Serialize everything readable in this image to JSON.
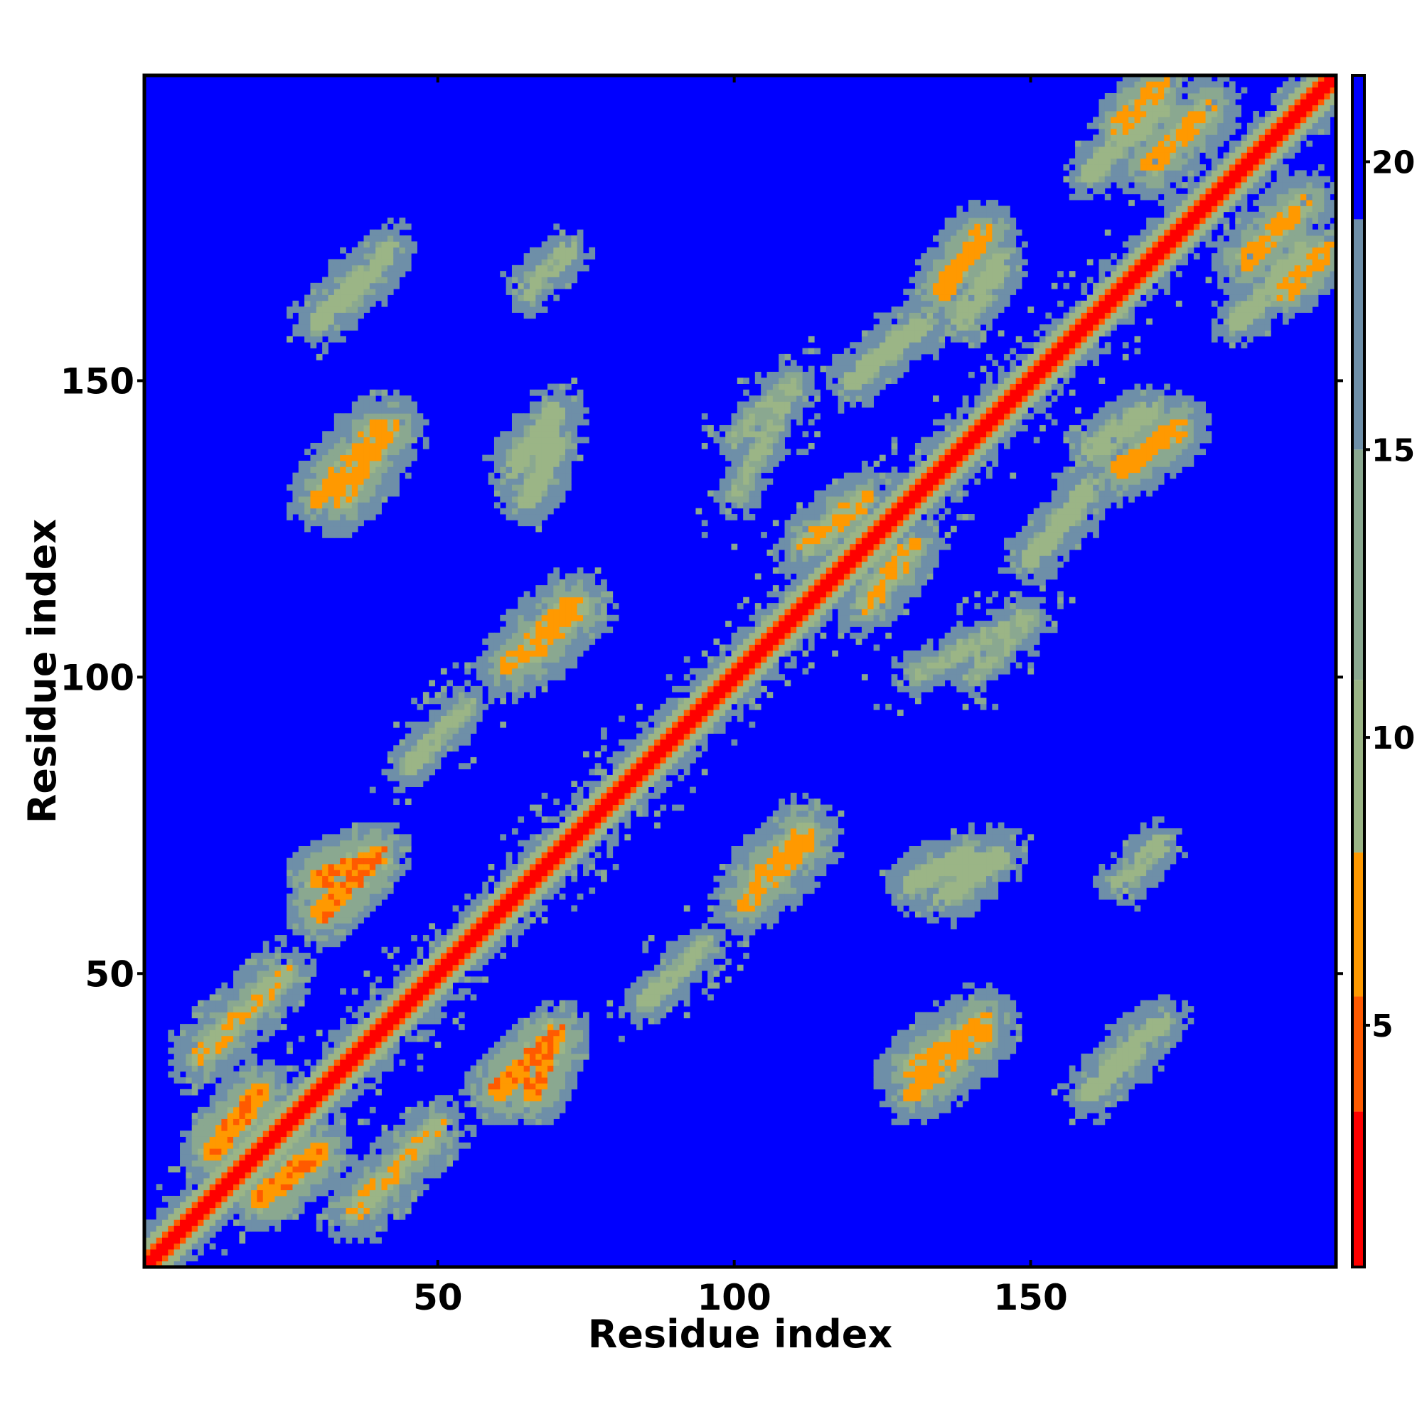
{
  "chart_data": {
    "type": "heatmap",
    "title": "",
    "xlabel": "Residue index",
    "ylabel": "Residue index",
    "xlim": [
      1,
      201
    ],
    "ylim": [
      1,
      201
    ],
    "n_residues": 201,
    "x_ticks": [
      50,
      100,
      150
    ],
    "y_ticks": [
      50,
      100,
      150
    ],
    "colorbar": {
      "ticks": [
        5,
        10,
        15,
        20
      ],
      "range": [
        0.8,
        21.5
      ],
      "colors": [
        {
          "max": 3.5,
          "color": "#ff0000"
        },
        {
          "max": 5.5,
          "color": "#ff5a00"
        },
        {
          "max": 8.0,
          "color": "#ff9900"
        },
        {
          "max": 11.0,
          "color": "#9bb586"
        },
        {
          "max": 15.0,
          "color": "#8aa890"
        },
        {
          "max": 19.0,
          "color": "#6e8fa8"
        },
        {
          "max": 99,
          "color": "#0000ff"
        }
      ],
      "background_color": "#0000ff"
    },
    "diagonal_band_halfwidth": 8,
    "contact_segments": [
      {
        "from": [
          12,
          20
        ],
        "to": [
          20,
          30
        ],
        "width": 6,
        "d": 7
      },
      {
        "from": [
          36,
          10
        ],
        "to": [
          50,
          24
        ],
        "width": 7,
        "d": 9
      },
      {
        "from": [
          30,
          66
        ],
        "to": [
          40,
          70
        ],
        "width": 6,
        "d": 7
      },
      {
        "from": [
          30,
          130
        ],
        "to": [
          40,
          142
        ],
        "width": 7,
        "d": 8
      },
      {
        "from": [
          30,
          160
        ],
        "to": [
          42,
          172
        ],
        "width": 6,
        "d": 10
      },
      {
        "from": [
          60,
          30
        ],
        "to": [
          68,
          38
        ],
        "width": 6,
        "d": 7
      },
      {
        "from": [
          62,
          102
        ],
        "to": [
          72,
          112
        ],
        "width": 7,
        "d": 8
      },
      {
        "from": [
          65,
          130
        ],
        "to": [
          70,
          140
        ],
        "width": 6,
        "d": 10
      },
      {
        "from": [
          65,
          165
        ],
        "to": [
          72,
          172
        ],
        "width": 5,
        "d": 11
      },
      {
        "from": [
          104,
          66
        ],
        "to": [
          112,
          74
        ],
        "width": 7,
        "d": 8
      },
      {
        "from": [
          130,
          34
        ],
        "to": [
          142,
          42
        ],
        "width": 7,
        "d": 8
      },
      {
        "from": [
          135,
          63
        ],
        "to": [
          145,
          70
        ],
        "width": 6,
        "d": 10
      },
      {
        "from": [
          112,
          122
        ],
        "to": [
          122,
          130
        ],
        "width": 7,
        "d": 9
      },
      {
        "from": [
          138,
          160
        ],
        "to": [
          145,
          170
        ],
        "width": 5,
        "d": 10
      },
      {
        "from": [
          165,
          135
        ],
        "to": [
          175,
          142
        ],
        "width": 6,
        "d": 8
      },
      {
        "from": [
          170,
          186
        ],
        "to": [
          180,
          196
        ],
        "width": 6,
        "d": 8
      },
      {
        "from": [
          193,
          165
        ],
        "to": [
          200,
          172
        ],
        "width": 5,
        "d": 8
      },
      {
        "from": [
          140,
          100
        ],
        "to": [
          150,
          110
        ],
        "width": 7,
        "d": 12
      },
      {
        "from": [
          100,
          130
        ],
        "to": [
          110,
          150
        ],
        "width": 8,
        "d": 12
      },
      {
        "from": [
          120,
          150
        ],
        "to": [
          132,
          160
        ],
        "width": 6,
        "d": 11
      },
      {
        "from": [
          150,
          120
        ],
        "to": [
          160,
          132
        ],
        "width": 6,
        "d": 11
      },
      {
        "from": [
          85,
          45
        ],
        "to": [
          95,
          55
        ],
        "width": 8,
        "d": 12
      },
      {
        "from": [
          45,
          85
        ],
        "to": [
          55,
          95
        ],
        "width": 8,
        "d": 12
      },
      {
        "from": [
          160,
          185
        ],
        "to": [
          172,
          196
        ],
        "width": 6,
        "d": 11
      },
      {
        "from": [
          185,
          160
        ],
        "to": [
          196,
          172
        ],
        "width": 6,
        "d": 11
      }
    ]
  }
}
